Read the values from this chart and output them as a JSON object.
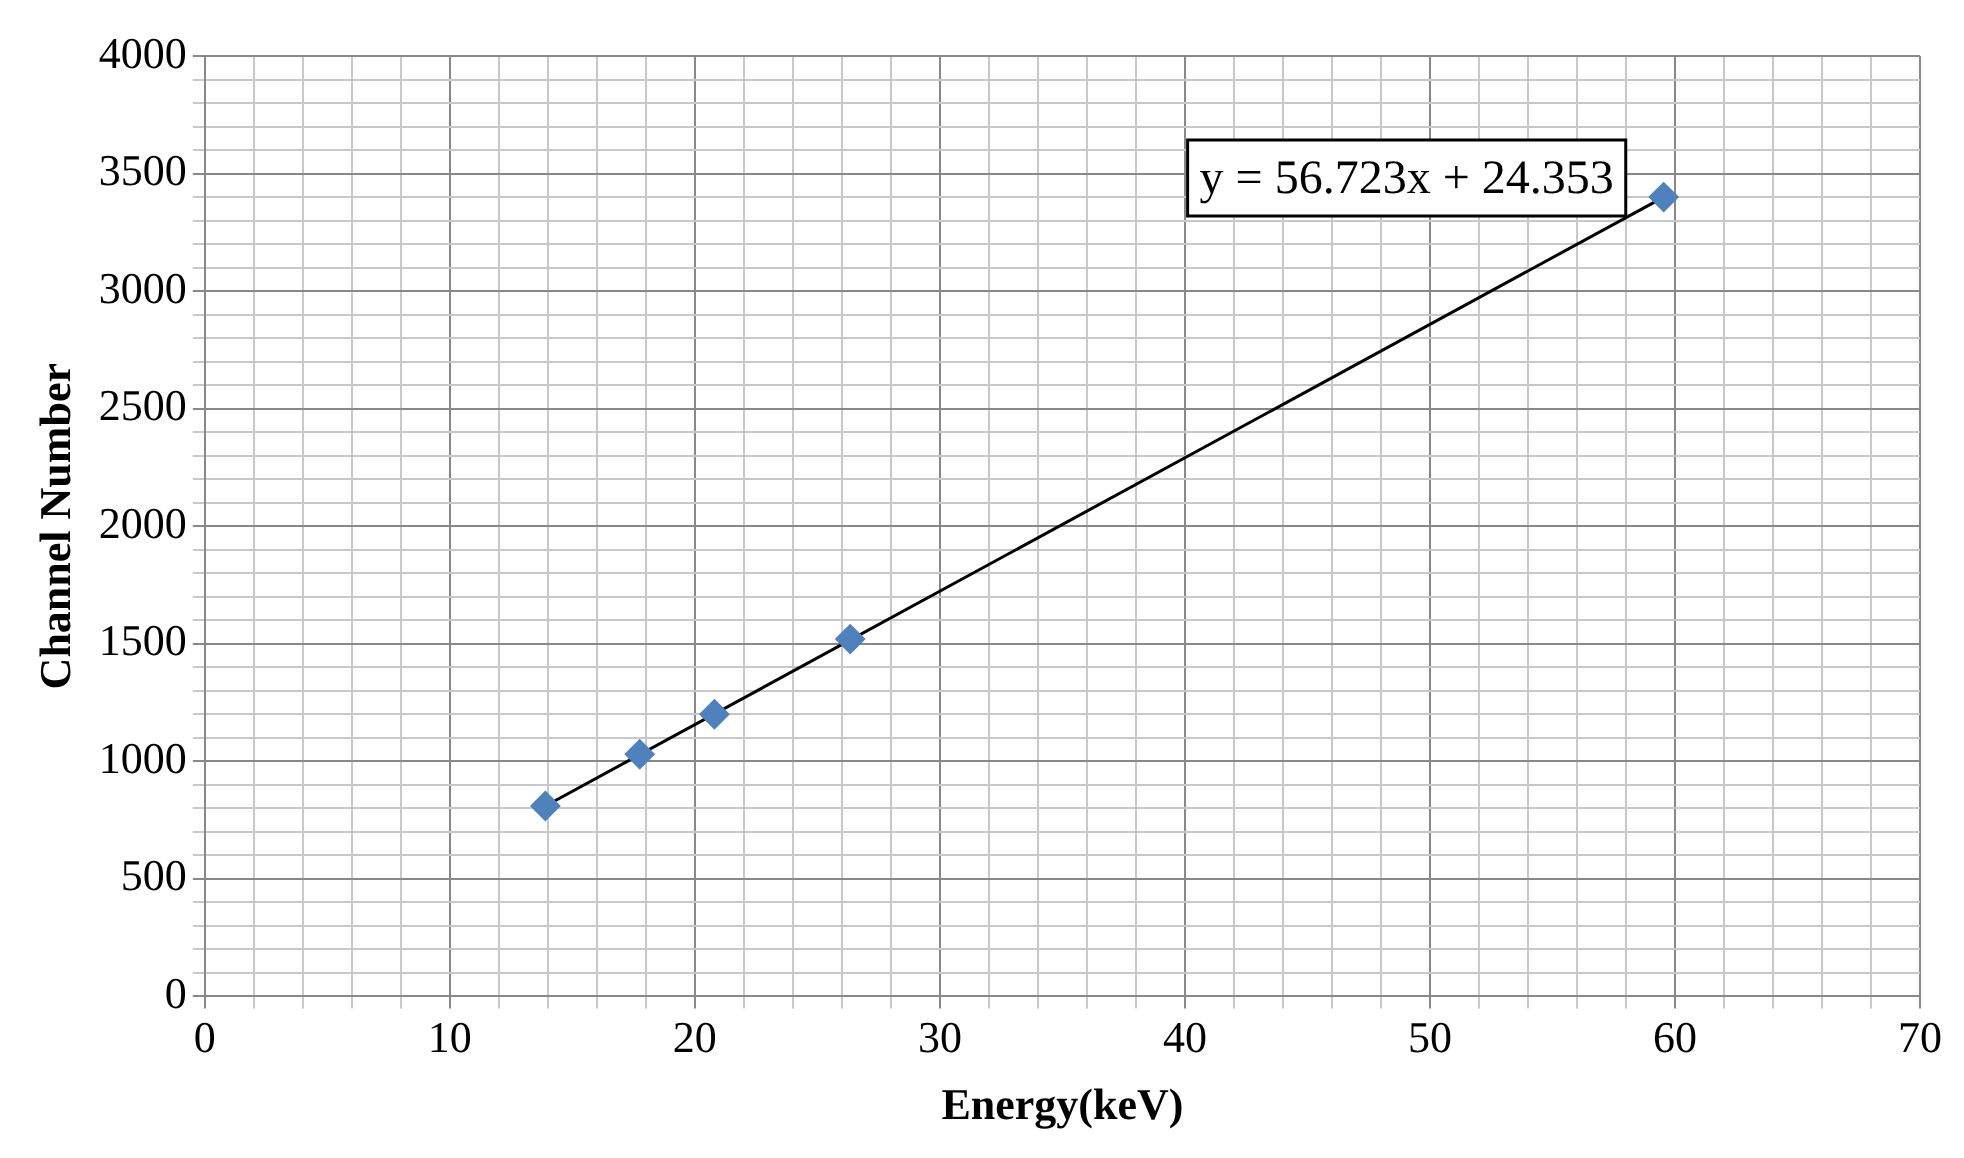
{
  "chart_data": {
    "type": "scatter",
    "xlabel": "Energy(keV)",
    "ylabel": "Channel Number",
    "grid": true,
    "x": [
      13.9,
      17.75,
      20.8,
      26.34,
      59.54
    ],
    "series": [
      {
        "color": "#4f81bd",
        "marker": "diamond",
        "values": [
          810,
          1030,
          1200,
          1520,
          3400
        ]
      },
      {
        "type": "line",
        "color": "#000000",
        "marker": "none",
        "x": [
          13.9,
          59.54
        ],
        "values": [
          810,
          3400
        ]
      }
    ],
    "annotations": [
      "y = 56.723x + 24.353"
    ],
    "xlim": [
      0,
      70
    ],
    "ylim": [
      0,
      4000
    ],
    "xticks": [
      0,
      {
        "value": 2,
        "label": null
      },
      {
        "value": 4,
        "label": null
      },
      {
        "value": 6,
        "label": null
      },
      {
        "value": 8,
        "label": null
      },
      10,
      {
        "value": 12,
        "label": null
      },
      {
        "value": 14,
        "label": null
      },
      {
        "value": 16,
        "label": null
      },
      {
        "value": 18,
        "label": null
      },
      20,
      {
        "value": 22,
        "label": null
      },
      {
        "value": 24,
        "label": null
      },
      {
        "value": 26,
        "label": null
      },
      {
        "value": 28,
        "label": null
      },
      30,
      {
        "value": 32,
        "label": null
      },
      {
        "value": 34,
        "label": null
      },
      {
        "value": 36,
        "label": null
      },
      {
        "value": 38,
        "label": null
      },
      40,
      {
        "value": 42,
        "label": null
      },
      {
        "value": 44,
        "label": null
      },
      {
        "value": 46,
        "label": null
      },
      {
        "value": 48,
        "label": null
      },
      50,
      {
        "value": 52,
        "label": null
      },
      {
        "value": 54,
        "label": null
      },
      {
        "value": 56,
        "label": null
      },
      {
        "value": 58,
        "label": null
      },
      60,
      {
        "value": 62,
        "label": null
      },
      {
        "value": 64,
        "label": null
      },
      {
        "value": 66,
        "label": null
      },
      {
        "value": 68,
        "label": null
      },
      70
    ],
    "yticks": [
      0,
      {
        "value": 100,
        "label": null
      },
      {
        "value": 200,
        "label": null
      },
      {
        "value": 300,
        "label": null
      },
      {
        "value": 400,
        "label": null
      },
      500,
      {
        "value": 600,
        "label": null
      },
      {
        "value": 700,
        "label": null
      },
      {
        "value": 800,
        "label": null
      },
      {
        "value": 900,
        "label": null
      },
      1000,
      {
        "value": 1100,
        "label": null
      },
      {
        "value": 1200,
        "label": null
      },
      {
        "value": 1300,
        "label": null
      },
      {
        "value": 1400,
        "label": null
      },
      1500,
      {
        "value": 1600,
        "label": null
      },
      {
        "value": 1700,
        "label": null
      },
      {
        "value": 1800,
        "label": null
      },
      {
        "value": 1900,
        "label": null
      },
      2000,
      {
        "value": 2100,
        "label": null
      },
      {
        "value": 2200,
        "label": null
      },
      {
        "value": 2300,
        "label": null
      },
      {
        "value": 2400,
        "label": null
      },
      2500,
      {
        "value": 2600,
        "label": null
      },
      {
        "value": 2700,
        "label": null
      },
      {
        "value": 2800,
        "label": null
      },
      {
        "value": 2900,
        "label": null
      },
      3000,
      {
        "value": 3100,
        "label": null
      },
      {
        "value": 3200,
        "label": null
      },
      {
        "value": 3300,
        "label": null
      },
      {
        "value": 3400,
        "label": null
      },
      3500,
      {
        "value": 3600,
        "label": null
      },
      {
        "value": 3700,
        "label": null
      },
      {
        "value": 3800,
        "label": null
      },
      {
        "value": 3900,
        "label": null
      },
      4000
    ]
  }
}
